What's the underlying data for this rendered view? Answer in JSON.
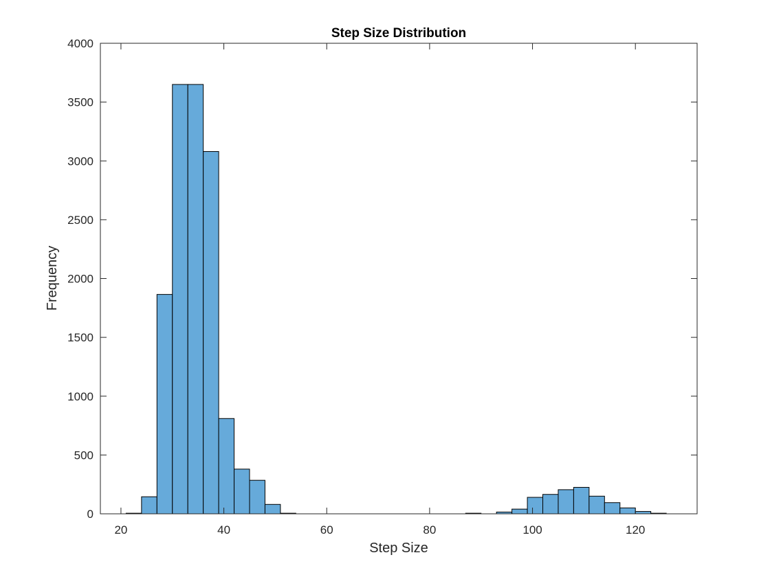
{
  "chart_data": {
    "type": "bar",
    "subtype": "histogram",
    "title": "Step Size Distribution",
    "xlabel": "Step Size",
    "ylabel": "Frequency",
    "xlim": [
      16,
      132
    ],
    "ylim": [
      0,
      4000
    ],
    "xticks": [
      20,
      40,
      60,
      80,
      100,
      120
    ],
    "yticks": [
      0,
      500,
      1000,
      1500,
      2000,
      2500,
      3000,
      3500,
      4000
    ],
    "grid": false,
    "bar_color": "#66AADA",
    "edge_color": "#000000",
    "bins": [
      {
        "start": 21,
        "end": 24,
        "count": 5
      },
      {
        "start": 24,
        "end": 27,
        "count": 145
      },
      {
        "start": 27,
        "end": 30,
        "count": 1865
      },
      {
        "start": 30,
        "end": 33,
        "count": 3650
      },
      {
        "start": 33,
        "end": 36,
        "count": 3650
      },
      {
        "start": 36,
        "end": 39,
        "count": 3080
      },
      {
        "start": 39,
        "end": 42,
        "count": 810
      },
      {
        "start": 42,
        "end": 45,
        "count": 380
      },
      {
        "start": 45,
        "end": 48,
        "count": 285
      },
      {
        "start": 48,
        "end": 51,
        "count": 80
      },
      {
        "start": 51,
        "end": 54,
        "count": 5
      },
      {
        "start": 87,
        "end": 90,
        "count": 5
      },
      {
        "start": 93,
        "end": 96,
        "count": 15
      },
      {
        "start": 96,
        "end": 99,
        "count": 40
      },
      {
        "start": 99,
        "end": 102,
        "count": 140
      },
      {
        "start": 102,
        "end": 105,
        "count": 165
      },
      {
        "start": 105,
        "end": 108,
        "count": 205
      },
      {
        "start": 108,
        "end": 111,
        "count": 225
      },
      {
        "start": 111,
        "end": 114,
        "count": 150
      },
      {
        "start": 114,
        "end": 117,
        "count": 95
      },
      {
        "start": 117,
        "end": 120,
        "count": 50
      },
      {
        "start": 120,
        "end": 123,
        "count": 20
      },
      {
        "start": 123,
        "end": 126,
        "count": 5
      }
    ]
  }
}
